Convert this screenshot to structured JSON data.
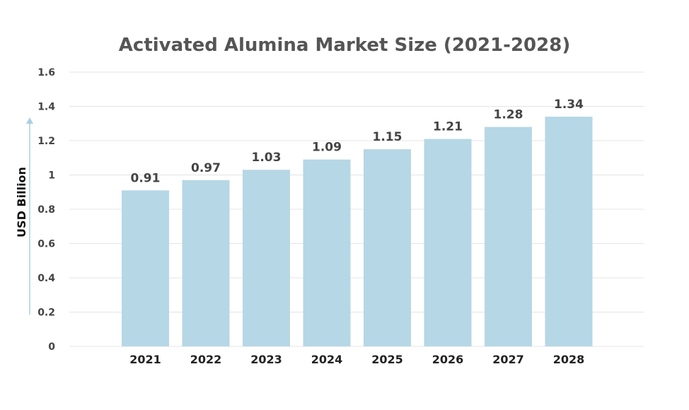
{
  "chart_data": {
    "type": "bar",
    "title": "Activated Alumina Market Size (2021-2028)",
    "xlabel": "",
    "ylabel": "USD Billion",
    "categories": [
      "2021",
      "2022",
      "2023",
      "2024",
      "2025",
      "2026",
      "2027",
      "2028"
    ],
    "values": [
      0.91,
      0.97,
      1.03,
      1.09,
      1.15,
      1.21,
      1.28,
      1.34
    ],
    "value_labels": [
      "0.91",
      "0.97",
      "1.03",
      "1.09",
      "1.15",
      "1.21",
      "1.28",
      "1.34"
    ],
    "ylim": [
      0,
      1.6
    ],
    "yticks": [
      "0",
      "0.2",
      "0.4",
      "0.6",
      "0.8",
      "1",
      "1.2",
      "1.4",
      "1.6"
    ],
    "grid": true,
    "legend": "none",
    "colors": {
      "bar": "#b6d7e5",
      "grid": "#e4e4e4",
      "axis_arrow": "#a9cfe0"
    }
  }
}
